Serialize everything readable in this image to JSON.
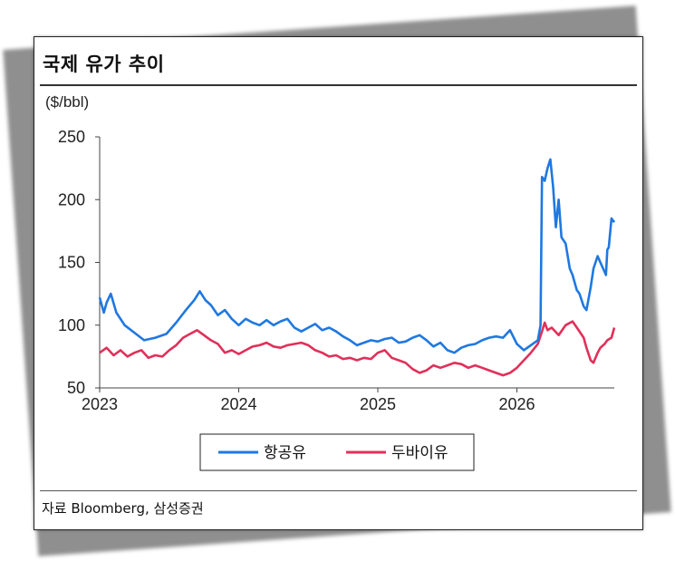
{
  "title": "국제 유가 추이",
  "source": "자료 Bloomberg, 삼성증권",
  "chart_data": {
    "type": "line",
    "ylabel": "($/bbl)",
    "ylim": [
      50,
      250
    ],
    "yticks": [
      "250",
      "200",
      "150",
      "100",
      "50"
    ],
    "xticks": [
      "2023",
      "2024",
      "2025",
      "2026"
    ],
    "xlim": [
      2023.0,
      2026.7
    ],
    "grid": false,
    "legend_position": "bottom-center",
    "series": [
      {
        "name": "항공유",
        "color": "#1f78e0",
        "x": [
          2023.0,
          2023.03,
          2023.05,
          2023.08,
          2023.12,
          2023.18,
          2023.25,
          2023.32,
          2023.4,
          2023.48,
          2023.55,
          2023.62,
          2023.68,
          2023.72,
          2023.76,
          2023.8,
          2023.85,
          2023.9,
          2023.95,
          2024.0,
          2024.05,
          2024.1,
          2024.15,
          2024.2,
          2024.25,
          2024.3,
          2024.35,
          2024.4,
          2024.45,
          2024.5,
          2024.55,
          2024.6,
          2024.65,
          2024.7,
          2024.75,
          2024.8,
          2024.85,
          2024.9,
          2024.95,
          2025.0,
          2025.05,
          2025.1,
          2025.15,
          2025.2,
          2025.25,
          2025.3,
          2025.35,
          2025.4,
          2025.45,
          2025.5,
          2025.55,
          2025.6,
          2025.65,
          2025.7,
          2025.75,
          2025.8,
          2025.85,
          2025.9,
          2025.95,
          2026.0,
          2026.05,
          2026.1,
          2026.15,
          2026.17,
          2026.18,
          2026.2,
          2026.22,
          2026.24,
          2026.26,
          2026.28,
          2026.3,
          2026.32,
          2026.35,
          2026.38,
          2026.4,
          2026.43,
          2026.45,
          2026.48,
          2026.5,
          2026.53,
          2026.55,
          2026.58,
          2026.6,
          2026.62,
          2026.64,
          2026.65,
          2026.66,
          2026.68,
          2026.7
        ],
        "values": [
          122,
          110,
          118,
          125,
          110,
          100,
          94,
          88,
          90,
          93,
          102,
          112,
          120,
          127,
          120,
          116,
          108,
          112,
          105,
          100,
          105,
          102,
          100,
          104,
          100,
          103,
          105,
          98,
          95,
          98,
          101,
          96,
          98,
          95,
          91,
          88,
          84,
          86,
          88,
          87,
          89,
          90,
          86,
          87,
          90,
          92,
          88,
          83,
          86,
          80,
          78,
          82,
          84,
          85,
          88,
          90,
          91,
          90,
          96,
          85,
          80,
          84,
          88,
          100,
          218,
          215,
          225,
          232,
          210,
          178,
          200,
          170,
          165,
          145,
          140,
          128,
          125,
          115,
          112,
          130,
          145,
          155,
          150,
          145,
          140,
          160,
          162,
          185,
          182
        ]
      },
      {
        "name": "두바이유",
        "color": "#e0305a",
        "x": [
          2023.0,
          2023.05,
          2023.1,
          2023.15,
          2023.2,
          2023.25,
          2023.3,
          2023.35,
          2023.4,
          2023.45,
          2023.5,
          2023.55,
          2023.6,
          2023.65,
          2023.7,
          2023.75,
          2023.8,
          2023.85,
          2023.9,
          2023.95,
          2024.0,
          2024.05,
          2024.1,
          2024.15,
          2024.2,
          2024.25,
          2024.3,
          2024.35,
          2024.4,
          2024.45,
          2024.5,
          2024.55,
          2024.6,
          2024.65,
          2024.7,
          2024.75,
          2024.8,
          2024.85,
          2024.9,
          2024.95,
          2025.0,
          2025.05,
          2025.1,
          2025.15,
          2025.2,
          2025.25,
          2025.3,
          2025.35,
          2025.4,
          2025.45,
          2025.5,
          2025.55,
          2025.6,
          2025.65,
          2025.7,
          2025.75,
          2025.8,
          2025.85,
          2025.9,
          2025.95,
          2026.0,
          2026.05,
          2026.1,
          2026.15,
          2026.18,
          2026.2,
          2026.22,
          2026.25,
          2026.3,
          2026.35,
          2026.4,
          2026.45,
          2026.48,
          2026.5,
          2026.53,
          2026.55,
          2026.58,
          2026.6,
          2026.63,
          2026.65,
          2026.68,
          2026.7
        ],
        "values": [
          78,
          82,
          76,
          80,
          75,
          78,
          80,
          74,
          76,
          75,
          80,
          84,
          90,
          93,
          96,
          92,
          88,
          85,
          78,
          80,
          77,
          80,
          83,
          84,
          86,
          83,
          82,
          84,
          85,
          86,
          84,
          80,
          78,
          75,
          76,
          73,
          74,
          72,
          74,
          73,
          78,
          80,
          74,
          72,
          70,
          65,
          62,
          64,
          68,
          66,
          68,
          70,
          69,
          66,
          68,
          66,
          64,
          62,
          60,
          62,
          66,
          72,
          78,
          85,
          95,
          102,
          96,
          98,
          92,
          100,
          103,
          95,
          90,
          82,
          72,
          70,
          78,
          82,
          85,
          88,
          90,
          98
        ]
      }
    ]
  }
}
